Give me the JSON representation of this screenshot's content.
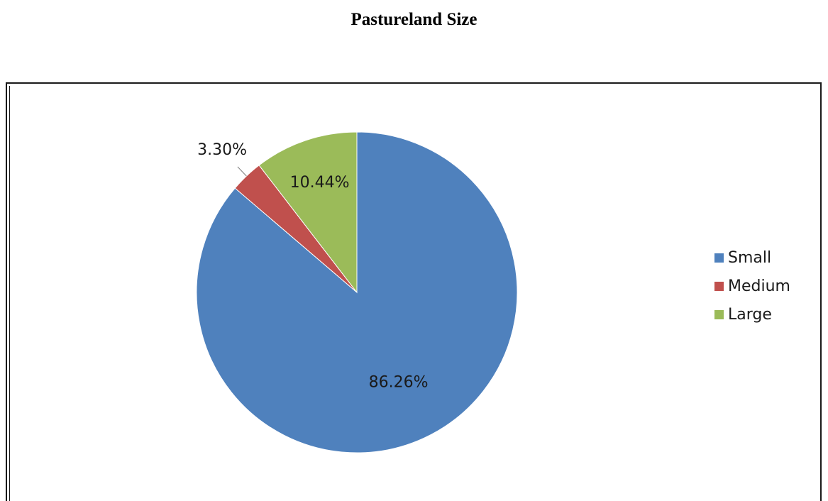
{
  "chart_data": {
    "type": "pie",
    "title": "Pastureland Size",
    "categories": [
      "Small",
      "Medium",
      "Large"
    ],
    "values": [
      86.26,
      3.3,
      10.44
    ],
    "data_labels": [
      "86.26%",
      "3.30%",
      "10.44%"
    ],
    "colors": [
      "#4f81bd",
      "#c0504d",
      "#9bbb59"
    ],
    "legend": {
      "placement": "right",
      "entries": [
        "Small",
        "Medium",
        "Large"
      ]
    }
  }
}
